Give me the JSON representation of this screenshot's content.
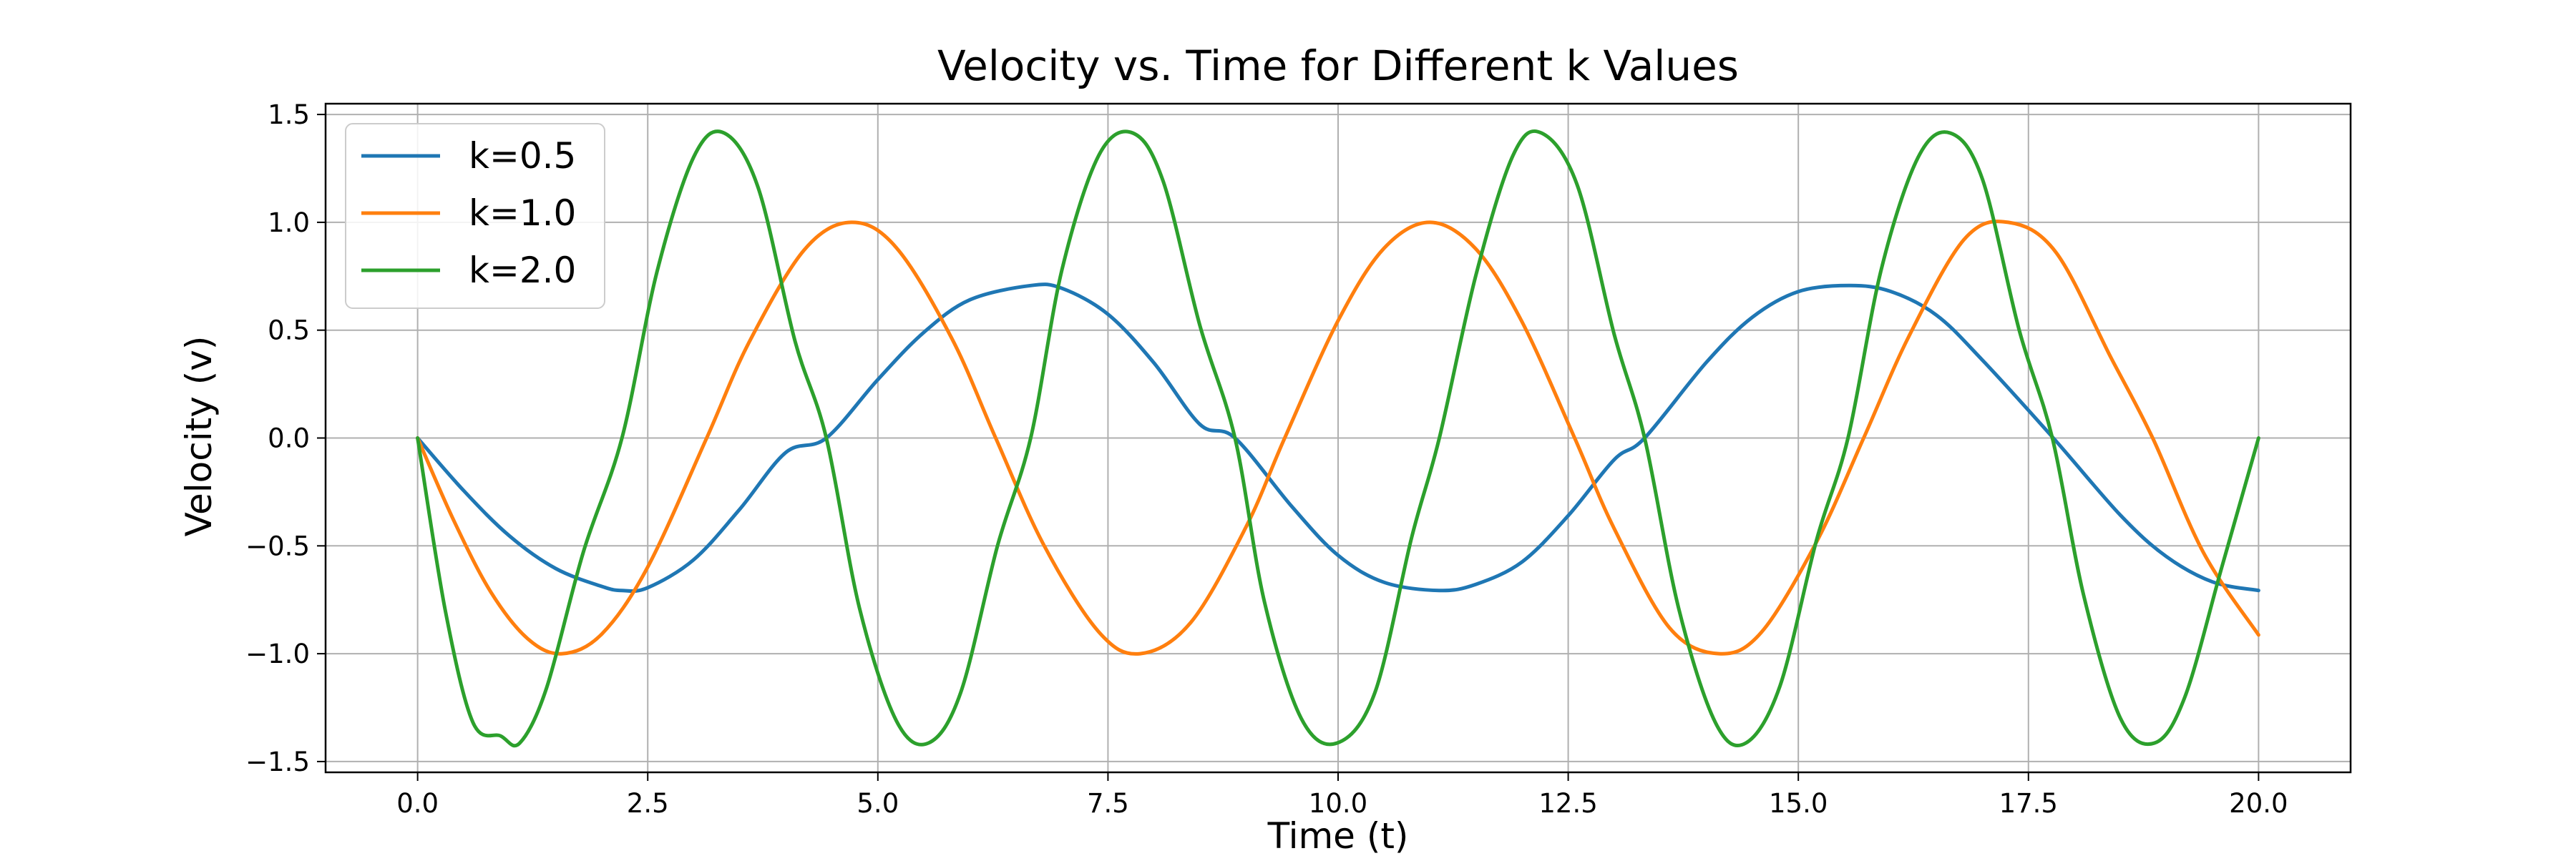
{
  "chart_data": {
    "type": "line",
    "title": "Velocity vs. Time for Different k Values",
    "xlabel": "Time (t)",
    "ylabel": "Velocity (v)",
    "xlim": [
      -1.0,
      21.0
    ],
    "ylim": [
      -1.55,
      1.55
    ],
    "xticks": [
      0.0,
      2.5,
      5.0,
      7.5,
      10.0,
      12.5,
      15.0,
      17.5,
      20.0
    ],
    "xtick_labels": [
      "0.0",
      "2.5",
      "5.0",
      "7.5",
      "10.0",
      "12.5",
      "15.0",
      "17.5",
      "20.0"
    ],
    "yticks": [
      -1.5,
      -1.0,
      -0.5,
      0.0,
      0.5,
      1.0,
      1.5
    ],
    "ytick_labels": [
      "−1.5",
      "−1.0",
      "−0.5",
      "0.0",
      "0.5",
      "1.0",
      "1.5"
    ],
    "grid": true,
    "legend_position": "upper-left",
    "series": [
      {
        "name": "k=0.5",
        "color": "#1f77b4",
        "x": [
          0.0,
          0.5,
          1.0,
          1.5,
          2.0,
          2.22,
          2.5,
          3.0,
          3.5,
          4.0,
          4.44,
          5.0,
          5.5,
          6.0,
          6.66,
          7.0,
          7.5,
          8.0,
          8.5,
          8.88,
          9.5,
          10.0,
          10.5,
          11.1,
          11.5,
          12.0,
          12.5,
          13.0,
          13.33,
          14.0,
          14.5,
          15.0,
          15.55,
          16.0,
          16.5,
          17.0,
          17.77,
          18.5,
          19.0,
          19.5,
          20.0
        ],
        "y": [
          0.0,
          -0.244,
          -0.455,
          -0.605,
          -0.688,
          -0.707,
          -0.694,
          -0.564,
          -0.33,
          -0.067,
          0.0,
          0.271,
          0.49,
          0.641,
          0.707,
          0.694,
          0.574,
          0.348,
          0.063,
          0.0,
          -0.319,
          -0.544,
          -0.669,
          -0.707,
          -0.678,
          -0.574,
          -0.36,
          -0.1,
          0.0,
          0.35,
          0.56,
          0.679,
          0.707,
          0.68,
          0.57,
          0.361,
          0.0,
          -0.358,
          -0.55,
          -0.667,
          -0.707
        ]
      },
      {
        "name": "k=1.0",
        "color": "#ff7f0e",
        "x": [
          0.0,
          0.4,
          0.8,
          1.2,
          1.57,
          2.0,
          2.5,
          3.14,
          3.6,
          4.2,
          4.71,
          5.2,
          5.8,
          6.28,
          6.8,
          7.4,
          7.85,
          8.4,
          9.0,
          9.42,
          10.0,
          10.5,
          11.0,
          11.5,
          12.0,
          12.57,
          13.0,
          13.6,
          14.14,
          14.6,
          15.2,
          15.71,
          16.2,
          16.8,
          17.28,
          17.8,
          18.4,
          18.85,
          19.4,
          20.0
        ],
        "y": [
          0.0,
          -0.389,
          -0.717,
          -0.932,
          -1.0,
          -0.909,
          -0.598,
          0.0,
          0.443,
          0.872,
          1.0,
          0.883,
          0.465,
          0.0,
          -0.494,
          -0.899,
          -1.0,
          -0.855,
          -0.412,
          0.0,
          0.544,
          0.88,
          1.0,
          0.875,
          0.537,
          0.0,
          -0.42,
          -0.88,
          -1.0,
          -0.9,
          -0.48,
          0.0,
          0.47,
          0.92,
          1.0,
          0.86,
          0.37,
          0.0,
          -0.53,
          -0.913
        ]
      },
      {
        "name": "k=2.0",
        "color": "#2ca02c",
        "x": [
          0.0,
          0.3,
          0.6,
          0.9,
          1.11,
          1.4,
          1.8,
          2.22,
          2.6,
          3.0,
          3.33,
          3.7,
          4.1,
          4.44,
          4.8,
          5.2,
          5.55,
          5.9,
          6.3,
          6.66,
          7.0,
          7.4,
          7.77,
          8.1,
          8.5,
          8.88,
          9.2,
          9.6,
          9.99,
          10.4,
          10.8,
          11.1,
          11.5,
          11.9,
          12.21,
          12.6,
          13.0,
          13.33,
          13.7,
          14.1,
          14.43,
          14.8,
          15.2,
          15.54,
          15.9,
          16.3,
          16.65,
          17.0,
          17.4,
          17.76,
          18.1,
          18.5,
          18.87,
          19.2,
          19.6,
          20.0
        ],
        "y": [
          0.0,
          -0.798,
          -1.318,
          -1.381,
          -1.414,
          -1.16,
          -0.529,
          0.0,
          0.77,
          1.303,
          1.414,
          1.16,
          0.45,
          0.0,
          -0.788,
          -1.31,
          -1.414,
          -1.18,
          -0.5,
          0.0,
          0.78,
          1.31,
          1.414,
          1.19,
          0.52,
          0.0,
          -0.76,
          -1.3,
          -1.414,
          -1.18,
          -0.46,
          0.0,
          0.76,
          1.31,
          1.414,
          1.17,
          0.48,
          0.0,
          -0.79,
          -1.32,
          -1.414,
          -1.15,
          -0.47,
          0.0,
          0.78,
          1.3,
          1.414,
          1.2,
          0.5,
          0.0,
          -0.73,
          -1.3,
          -1.414,
          -1.2,
          -0.6,
          0.0
        ]
      }
    ]
  }
}
